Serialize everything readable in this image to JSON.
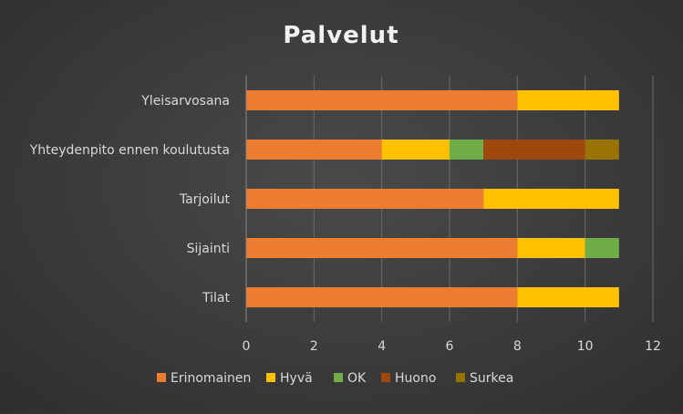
{
  "chart_data": {
    "type": "bar",
    "orientation": "horizontal",
    "stacked": true,
    "title": "Palvelut",
    "categories": [
      "Yleisarvosana",
      "Yhteydenpito ennen koulutusta",
      "Tarjoilut",
      "Sijainti",
      "Tilat"
    ],
    "series": [
      {
        "name": "Erinomainen",
        "color": "#ED7D31",
        "values": [
          8,
          4,
          7,
          8,
          8
        ]
      },
      {
        "name": "Hyvä",
        "color": "#FFC000",
        "values": [
          3,
          2,
          4,
          2,
          3
        ]
      },
      {
        "name": "OK",
        "color": "#70AD47",
        "values": [
          0,
          1,
          0,
          1,
          0
        ]
      },
      {
        "name": "Huono",
        "color": "#9E480E",
        "values": [
          0,
          3,
          0,
          0,
          0
        ]
      },
      {
        "name": "Surkea",
        "color": "#997300",
        "values": [
          0,
          1,
          0,
          0,
          0
        ]
      }
    ],
    "xlim": [
      0,
      12
    ],
    "xticks": [
      "0",
      "2",
      "4",
      "6",
      "8",
      "10",
      "12"
    ],
    "grid": true,
    "legend_position": "bottom"
  }
}
